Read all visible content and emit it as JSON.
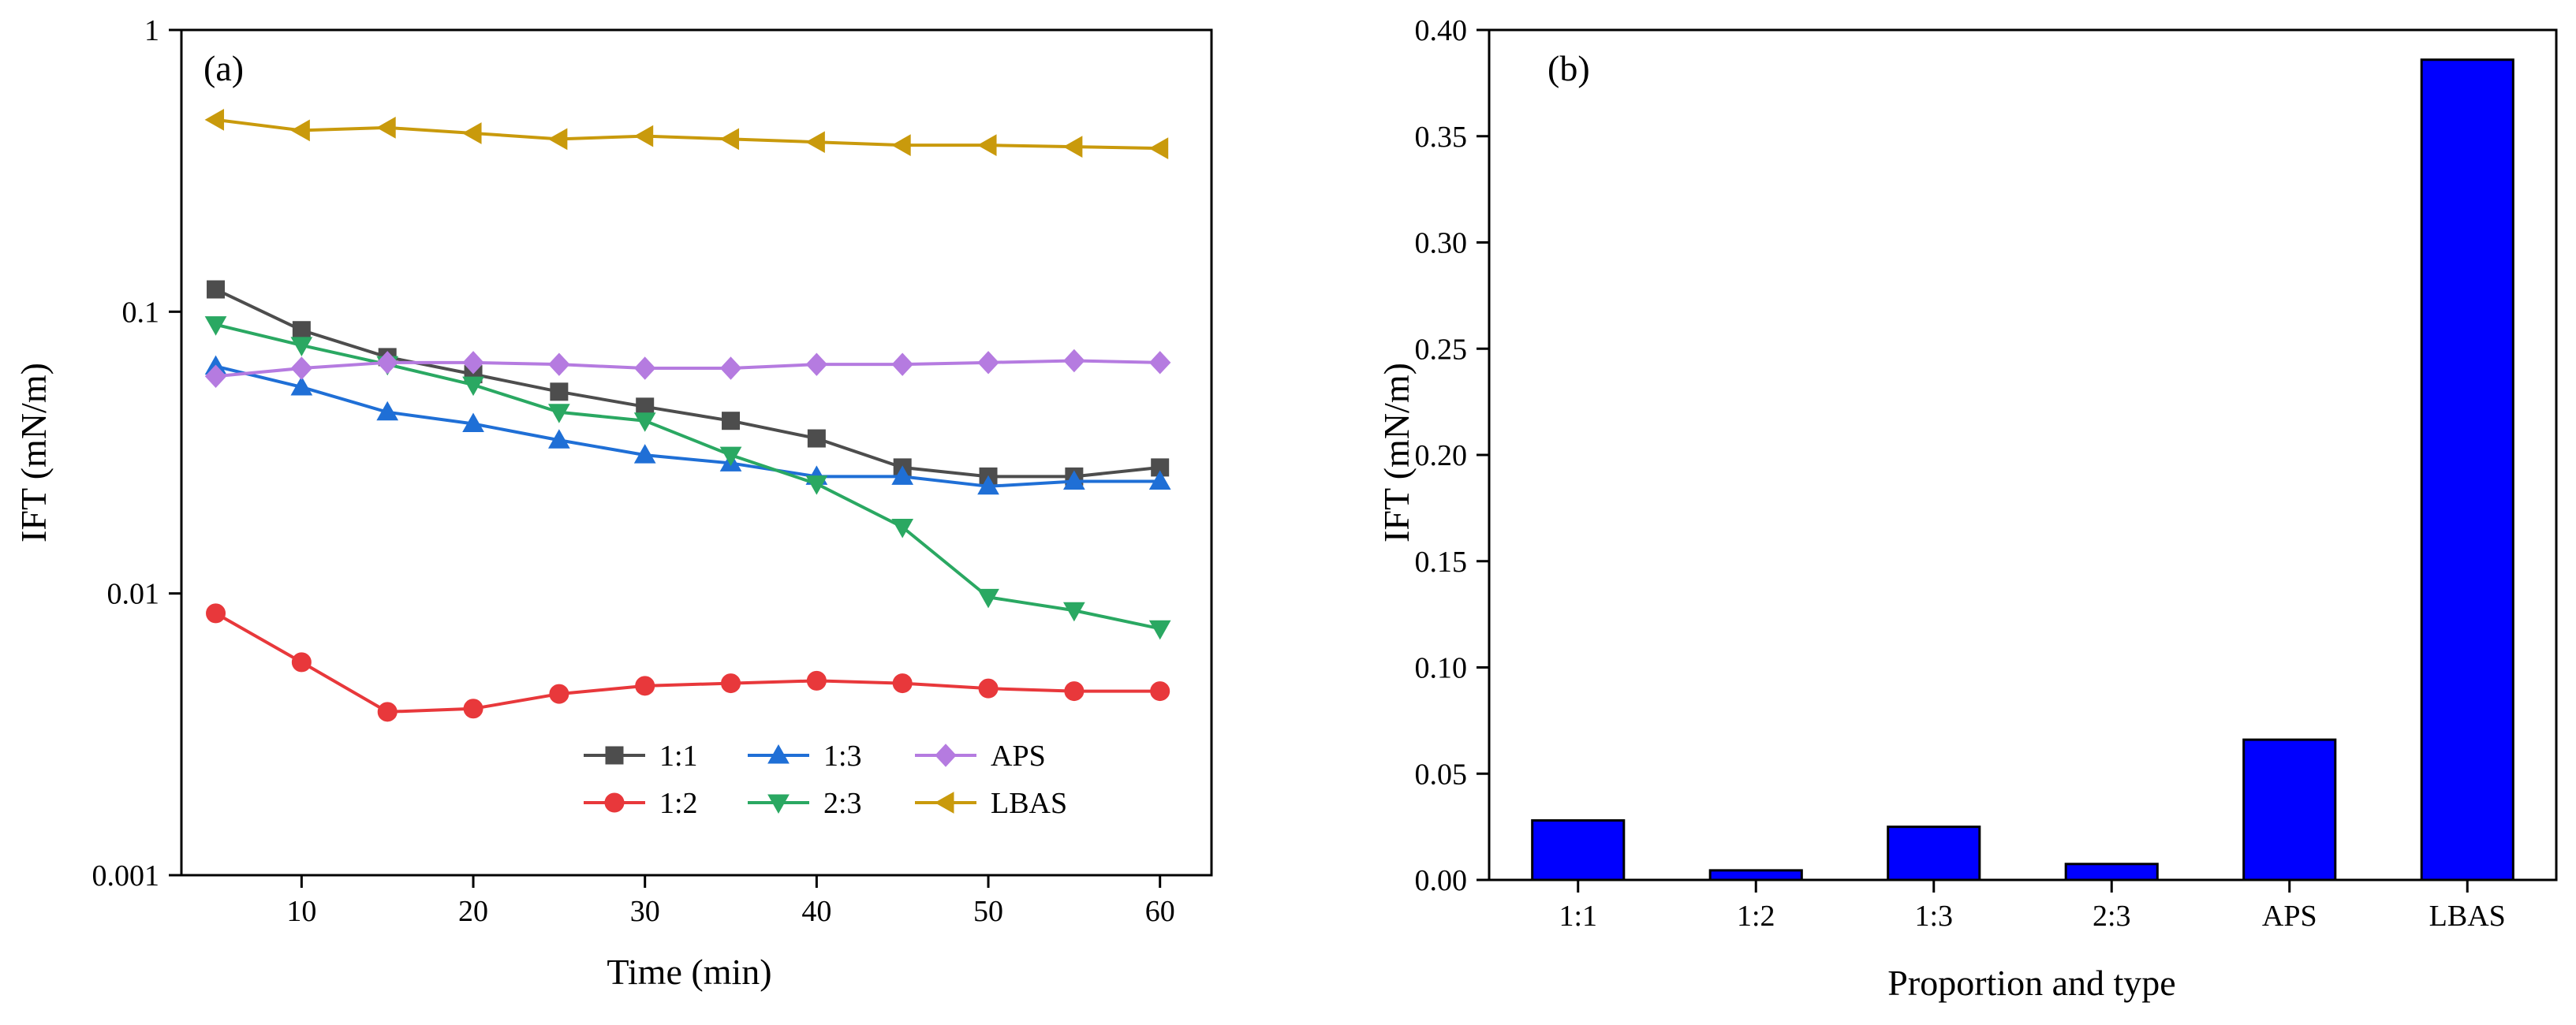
{
  "chart_data": [
    {
      "panel": "(a)",
      "type": "line",
      "xlabel": "Time (min)",
      "ylabel": "IFT (mN/m)",
      "yscale": "log",
      "xlim": [
        3,
        63
      ],
      "ylim": [
        0.001,
        1
      ],
      "xticks": [
        10,
        20,
        30,
        40,
        50,
        60
      ],
      "yticks": [
        0.001,
        0.01,
        0.1,
        1
      ],
      "ytick_labels": [
        "0.001",
        "0.01",
        "0.1",
        "1"
      ],
      "x": [
        5,
        10,
        15,
        20,
        25,
        30,
        35,
        40,
        45,
        50,
        55,
        60
      ],
      "series": [
        {
          "name": "1:1",
          "color": "#4d4d4d",
          "marker": "square",
          "values": [
            0.12,
            0.086,
            0.069,
            0.06,
            0.052,
            0.046,
            0.041,
            0.0355,
            0.028,
            0.026,
            0.026,
            0.028
          ]
        },
        {
          "name": "1:2",
          "color": "#e8383b",
          "marker": "circle",
          "values": [
            0.0085,
            0.0057,
            0.0038,
            0.0039,
            0.0044,
            0.0047,
            0.0048,
            0.0049,
            0.0048,
            0.0046,
            0.0045,
            0.0045
          ]
        },
        {
          "name": "1:3",
          "color": "#1f6fd6",
          "marker": "triangle-up",
          "values": [
            0.064,
            0.054,
            0.044,
            0.04,
            0.035,
            0.031,
            0.029,
            0.026,
            0.026,
            0.024,
            0.025,
            0.025
          ]
        },
        {
          "name": "2:3",
          "color": "#2aa862",
          "marker": "triangle-down",
          "values": [
            0.09,
            0.076,
            0.065,
            0.055,
            0.044,
            0.041,
            0.031,
            0.0245,
            0.0172,
            0.0097,
            0.0087,
            0.0075
          ]
        },
        {
          "name": "APS",
          "color": "#b57be0",
          "marker": "diamond",
          "values": [
            0.059,
            0.063,
            0.066,
            0.066,
            0.065,
            0.063,
            0.063,
            0.065,
            0.065,
            0.066,
            0.067,
            0.066
          ]
        },
        {
          "name": "LBAS",
          "color": "#c99a0c",
          "marker": "triangle-left",
          "values": [
            0.48,
            0.44,
            0.45,
            0.43,
            0.41,
            0.42,
            0.41,
            0.4,
            0.39,
            0.39,
            0.385,
            0.38
          ]
        }
      ],
      "legend_position": "bottom-right, 3 columns"
    },
    {
      "panel": "(b)",
      "type": "bar",
      "xlabel": "Proportion and type",
      "ylabel": "IFT (mN/m)",
      "ylim": [
        0,
        0.4
      ],
      "yticks": [
        0,
        0.05,
        0.1,
        0.15,
        0.2,
        0.25,
        0.3,
        0.35,
        0.4
      ],
      "ytick_labels": [
        "0.00",
        "0.05",
        "0.10",
        "0.15",
        "0.20",
        "0.25",
        "0.30",
        "0.35",
        "0.40"
      ],
      "categories": [
        "1:1",
        "1:2",
        "1:3",
        "2:3",
        "APS",
        "LBAS"
      ],
      "values": [
        0.028,
        0.0045,
        0.025,
        0.0075,
        0.066,
        0.386
      ],
      "bar_color": "#0000ff"
    }
  ]
}
